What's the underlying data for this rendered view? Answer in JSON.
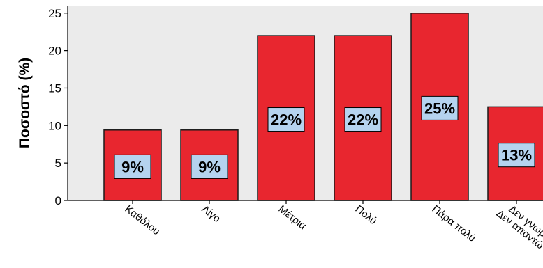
{
  "chart_data": {
    "type": "bar",
    "title": "",
    "xlabel": "",
    "ylabel": "Ποσοστό (%)",
    "ylim": [
      0,
      26
    ],
    "yticks": [
      0,
      5,
      10,
      15,
      20,
      25
    ],
    "grid": false,
    "categories": [
      "Καθόλου",
      "Λίγο",
      "Μέτρια",
      "Πολύ",
      "Πάρα πολύ",
      "Δεν γνωρίζω / Δεν απαντώ"
    ],
    "values": [
      9.4,
      9.4,
      22,
      22,
      25,
      12.5
    ],
    "data_labels": [
      "9%",
      "9%",
      "22%",
      "22%",
      "25%",
      "13%"
    ],
    "colors": {
      "bar_fill": "#E8262F",
      "bar_stroke": "#1a1a1a",
      "label_fill": "#B5D3EF",
      "plot_background": "#EBEBEB",
      "axis": "#000000"
    }
  }
}
